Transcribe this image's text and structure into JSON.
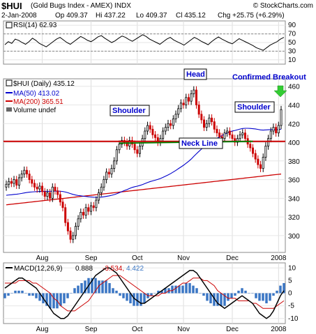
{
  "header": {
    "symbol": "$HUI",
    "name": "(Gold Bugs Index - AMEX)  INDX",
    "brand": "© StockCharts.com",
    "date": "2-Jan-2008",
    "open": "Op 409.37",
    "high": "Hi 437.22",
    "low": "Lo 409.37",
    "close": "Cl 435.12",
    "change": "Chg +25.75 (+6.29%)"
  },
  "chart_data": [
    {
      "type": "line",
      "panel": "rsi",
      "legend": "RSI(14) 62.93",
      "yticks": [
        10,
        30,
        50,
        70,
        90
      ],
      "ylim": [
        0,
        100
      ],
      "grid": true,
      "levels": [
        30,
        70
      ],
      "color": "#000000",
      "values": [
        45,
        52,
        48,
        58,
        55,
        50,
        46,
        52,
        60,
        55,
        48,
        44,
        40,
        46,
        52,
        58,
        62,
        56,
        50,
        46,
        52,
        58,
        64,
        60,
        55,
        52,
        57,
        63,
        66,
        60,
        55,
        50,
        54,
        60,
        65,
        62,
        57,
        53,
        58,
        63,
        68,
        64,
        58,
        54,
        50,
        46,
        52,
        58,
        62,
        56,
        52,
        48,
        44,
        50,
        56,
        62,
        58,
        53,
        49,
        45,
        52,
        58,
        63,
        58,
        54,
        50,
        47,
        53,
        59,
        55,
        51,
        47,
        43,
        38,
        35,
        32,
        38,
        44,
        48,
        52,
        58,
        62
      ]
    },
    {
      "type": "candlestick",
      "panel": "price",
      "legend": "$HUI (Daily) 435.12",
      "ma50_label": "MA(50) 413.02",
      "ma200_label": "MA(200) 365.51",
      "volume_label": "Volume undef",
      "x_labels": [
        "Aug",
        "Sep",
        "Oct",
        "Nov",
        "Dec",
        "2008"
      ],
      "yticks": [
        300,
        320,
        340,
        360,
        380,
        400,
        420,
        440,
        460
      ],
      "ylim": [
        282,
        468
      ],
      "grid": true,
      "neckline": 401,
      "colors": {
        "up": "#000000",
        "down": "#cc0000",
        "ma50": "#0000cc",
        "ma200": "#cc0000",
        "neckline": "#cc0000",
        "trendline": "#008000"
      },
      "annotations": [
        "Head",
        "Shoulder",
        "Shoulder",
        "Neck Line",
        "Confirmed Breakout"
      ],
      "close": [
        355,
        358,
        356,
        360,
        354,
        362,
        366,
        370,
        366,
        360,
        356,
        352,
        350,
        353,
        347,
        342,
        346,
        340,
        352,
        348,
        344,
        336,
        330,
        314,
        305,
        296,
        300,
        310,
        318,
        325,
        322,
        330,
        326,
        332,
        330,
        338,
        346,
        352,
        360,
        368,
        366,
        372,
        380,
        392,
        398,
        402,
        400,
        396,
        402,
        398,
        392,
        388,
        396,
        404,
        412,
        418,
        414,
        408,
        405,
        400,
        404,
        412,
        416,
        420,
        418,
        425,
        430,
        436,
        442,
        440,
        448,
        444,
        452,
        456,
        440,
        430,
        424,
        416,
        420,
        426,
        422,
        414,
        410,
        406,
        404,
        410,
        412,
        408,
        404,
        400,
        404,
        408,
        410,
        404,
        398,
        394,
        388,
        382,
        376,
        372,
        384,
        396,
        404,
        412,
        416,
        410,
        418,
        435
      ]
    },
    {
      "type": "line",
      "panel": "macd",
      "legend": "MACD(12,26,9)",
      "macd_value": "0.888",
      "signal_value": "-3.534",
      "hist_value": "4.422",
      "yticks": [
        -10,
        -5,
        0,
        5,
        10
      ],
      "ylim": [
        -12,
        12
      ],
      "grid": true,
      "colors": {
        "macd": "#000000",
        "signal": "#cc0000",
        "hist": "#3a76c4"
      },
      "macd": [
        2,
        3,
        4,
        5,
        6,
        6,
        5,
        4,
        3,
        2,
        0,
        -2,
        -4,
        -6,
        -8,
        -9,
        -10,
        -10,
        -9,
        -7,
        -5,
        -3,
        -1,
        1,
        3,
        5,
        7,
        8,
        9,
        10,
        10,
        9,
        8,
        6,
        4,
        2,
        0,
        -2,
        -3,
        -4,
        -4,
        -3,
        -2,
        -1,
        0,
        1,
        2,
        3,
        4,
        5,
        6,
        7,
        8,
        9,
        9,
        8,
        6,
        4,
        2,
        0,
        -2,
        -4,
        -5,
        -6,
        -5,
        -4,
        -3,
        -2,
        -1,
        -2,
        -3,
        -4,
        -6,
        -8,
        -9,
        -10,
        -9,
        -7,
        -4,
        -1,
        1
      ],
      "signal": [
        4,
        4,
        4,
        4,
        5,
        5,
        5,
        5,
        4,
        4,
        3,
        2,
        1,
        0,
        -2,
        -3,
        -5,
        -6,
        -7,
        -7,
        -7,
        -6,
        -5,
        -4,
        -3,
        -1,
        1,
        3,
        4,
        5,
        6,
        7,
        7,
        7,
        6,
        5,
        4,
        3,
        2,
        1,
        0,
        -1,
        -1,
        -1,
        -1,
        0,
        0,
        1,
        1,
        2,
        3,
        4,
        4,
        5,
        6,
        6,
        6,
        5,
        5,
        4,
        3,
        1,
        0,
        -1,
        -2,
        -2,
        -2,
        -3,
        -3,
        -3,
        -3,
        -4,
        -4,
        -5,
        -6,
        -6,
        -6,
        -6,
        -5,
        -4,
        -3
      ]
    }
  ]
}
